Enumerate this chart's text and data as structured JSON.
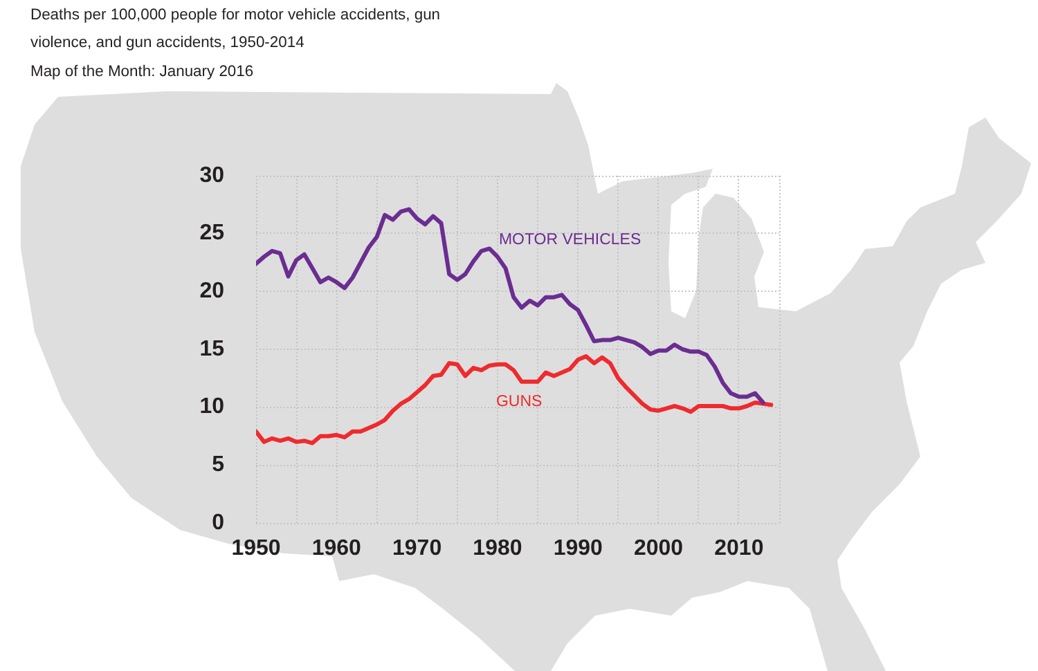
{
  "chart_data": {
    "type": "line",
    "title": "Deaths per 100,000 people for motor vehicle accidents, gun violence, and gun accidents, 1950-2014",
    "subtitle": "Map of the Month: January 2016",
    "x": [
      1950,
      1951,
      1952,
      1953,
      1954,
      1955,
      1956,
      1957,
      1958,
      1959,
      1960,
      1961,
      1962,
      1963,
      1964,
      1965,
      1966,
      1967,
      1968,
      1969,
      1970,
      1971,
      1972,
      1973,
      1974,
      1975,
      1976,
      1977,
      1978,
      1979,
      1980,
      1981,
      1982,
      1983,
      1984,
      1985,
      1986,
      1987,
      1988,
      1989,
      1990,
      1991,
      1992,
      1993,
      1994,
      1995,
      1996,
      1997,
      1998,
      1999,
      2000,
      2001,
      2002,
      2003,
      2004,
      2005,
      2006,
      2007,
      2008,
      2009,
      2010,
      2011,
      2012,
      2013,
      2014
    ],
    "series": [
      {
        "name": "MOTOR VEHICLES",
        "color": "#6b2d91",
        "values": [
          22.4,
          23.0,
          23.5,
          23.3,
          21.3,
          22.7,
          23.2,
          22.0,
          20.8,
          21.2,
          20.8,
          20.3,
          21.2,
          22.5,
          23.8,
          24.7,
          26.6,
          26.2,
          26.9,
          27.1,
          26.3,
          25.8,
          26.5,
          25.9,
          21.5,
          21.0,
          21.5,
          22.6,
          23.5,
          23.7,
          23.0,
          22.0,
          19.5,
          18.6,
          19.2,
          18.8,
          19.5,
          19.5,
          19.7,
          18.9,
          18.4,
          17.1,
          15.7,
          15.8,
          15.8,
          16.0,
          15.8,
          15.6,
          15.2,
          14.6,
          14.9,
          14.9,
          15.4,
          15.0,
          14.8,
          14.8,
          14.5,
          13.5,
          12.1,
          11.2,
          10.9,
          10.9,
          11.2,
          10.4,
          null
        ]
      },
      {
        "name": "GUNS",
        "color": "#ee2b2e",
        "values": [
          7.9,
          7.0,
          7.3,
          7.1,
          7.3,
          7.0,
          7.1,
          6.9,
          7.5,
          7.5,
          7.6,
          7.4,
          7.9,
          7.9,
          8.2,
          8.5,
          8.9,
          9.7,
          10.3,
          10.7,
          11.3,
          11.9,
          12.7,
          12.8,
          13.8,
          13.7,
          12.7,
          13.4,
          13.2,
          13.6,
          13.7,
          13.7,
          13.2,
          12.2,
          12.2,
          12.2,
          13.0,
          12.7,
          13.0,
          13.3,
          14.1,
          14.4,
          13.8,
          14.3,
          13.8,
          12.5,
          11.7,
          11.0,
          10.3,
          9.8,
          9.7,
          9.9,
          10.1,
          9.9,
          9.6,
          10.1,
          10.1,
          10.1,
          10.1,
          9.9,
          9.9,
          10.1,
          10.4,
          10.3,
          10.2
        ]
      }
    ],
    "xlim": [
      1950,
      2015
    ],
    "xticks": [
      1950,
      {
        "value": 1955,
        "label": null
      },
      1960,
      {
        "value": 1965,
        "label": null
      },
      1970,
      {
        "value": 1975,
        "label": null
      },
      1980,
      {
        "value": 1985,
        "label": null
      },
      1990,
      {
        "value": 1995,
        "label": null
      },
      2000,
      {
        "value": 2005,
        "label": null
      },
      2010,
      {
        "value": 2015,
        "label": null
      }
    ],
    "ylim": [
      0,
      30
    ],
    "yticks": [
      0,
      5,
      10,
      15,
      20,
      25,
      30
    ],
    "grid": true,
    "legend": false,
    "marker": "none",
    "line_style": "solid"
  }
}
